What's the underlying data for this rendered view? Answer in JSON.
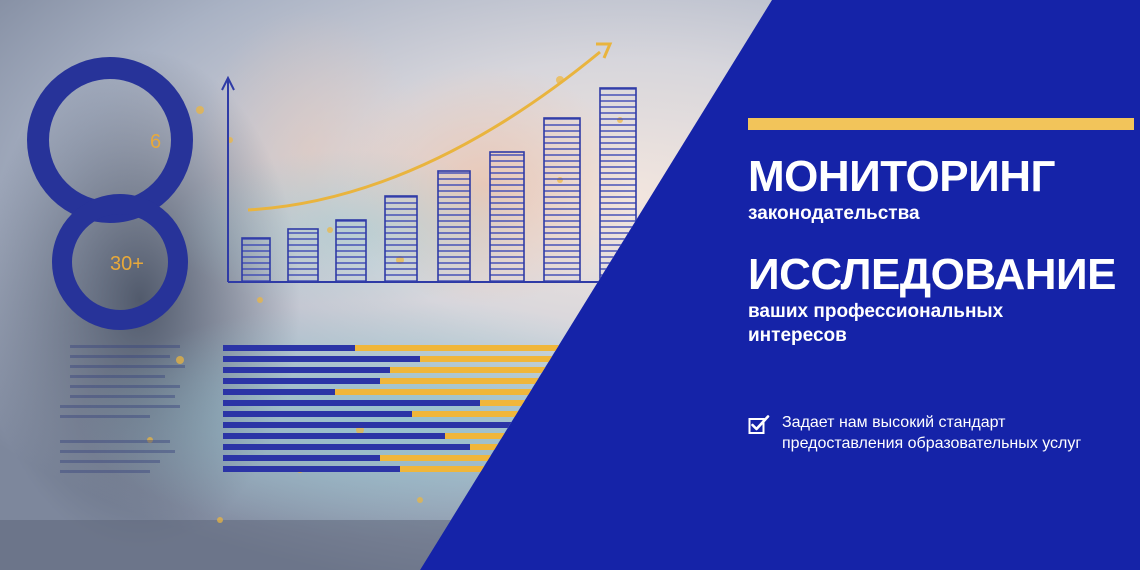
{
  "hero": {
    "circle_label_top": "6",
    "circle_label_middle": "30+"
  },
  "headline_1": {
    "title": "МОНИТОРИНГ",
    "subtitle": "законодательства"
  },
  "headline_2": {
    "title": "ИССЛЕДОВАНИЕ",
    "subtitle": "ваших профессиональных интересов"
  },
  "feature": {
    "icon": "checkbox-check-icon",
    "text": "Задает нам высокий стандарт предоставления образовательных услуг"
  },
  "colors": {
    "background": "#1523a8",
    "accent": "#f2c45a",
    "text": "#ffffff"
  }
}
